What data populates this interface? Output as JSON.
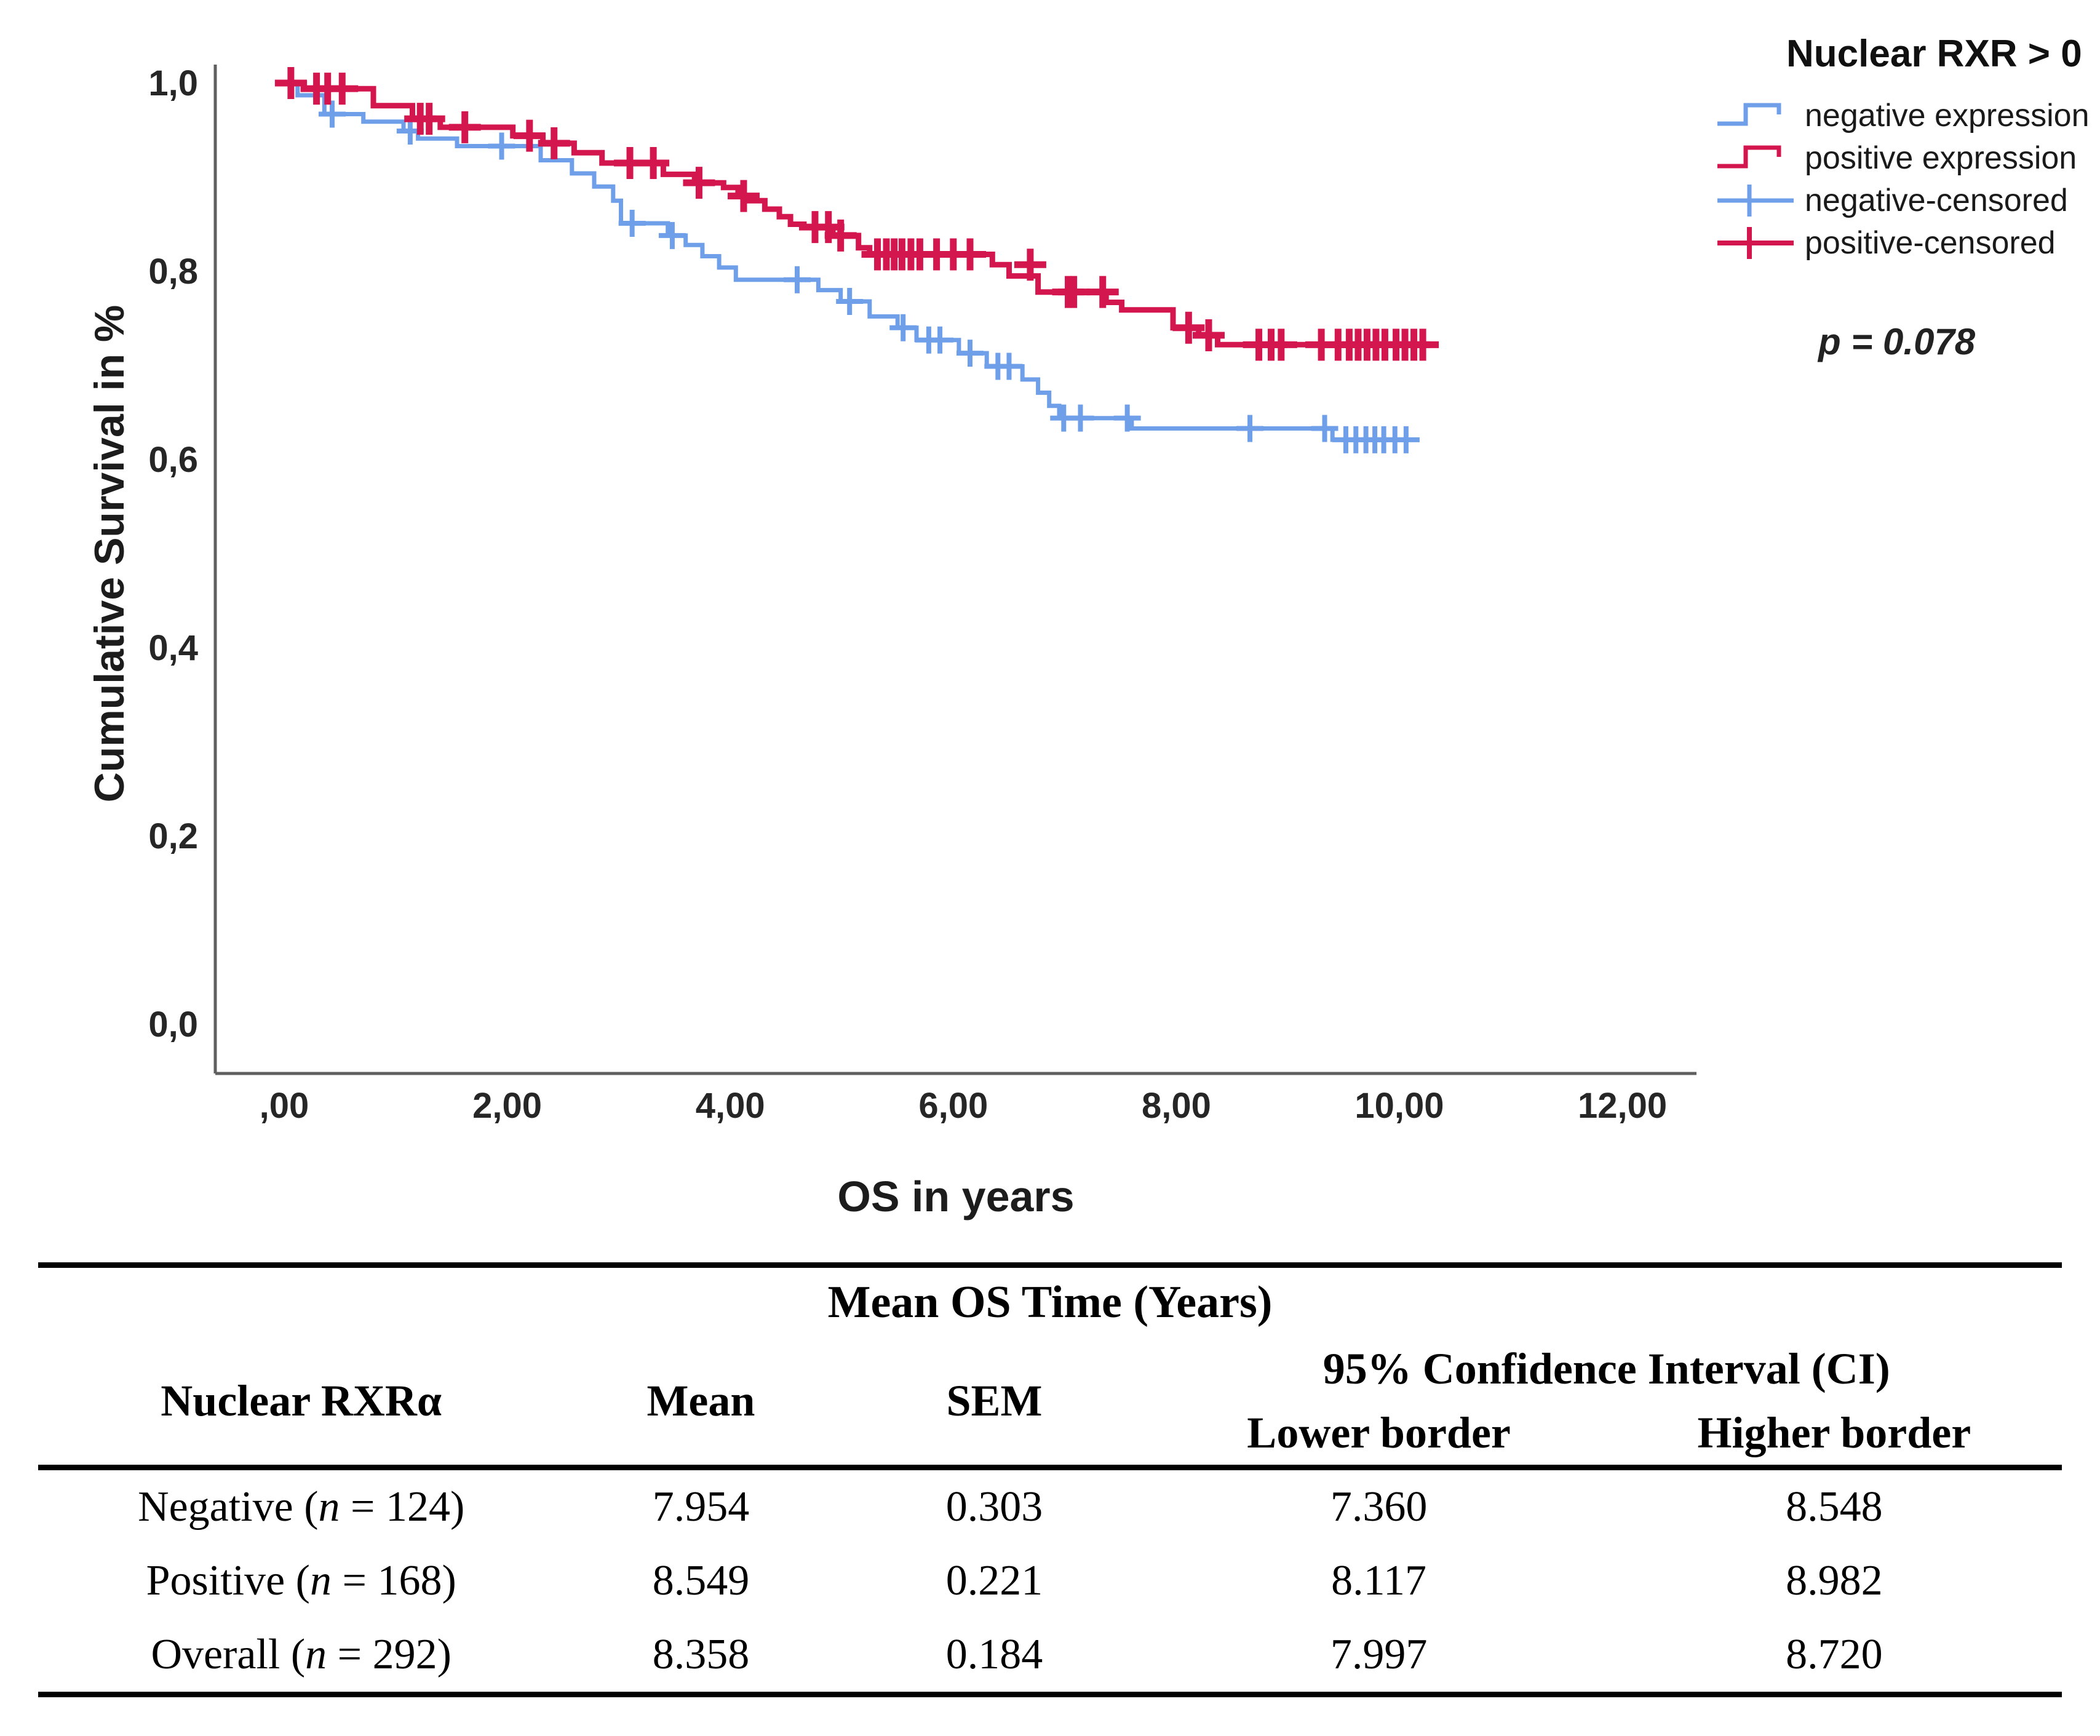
{
  "chart": {
    "legend": {
      "title": "Nuclear RXR > 0",
      "items": [
        {
          "label": "negative expression",
          "swatch": "step-line-icon",
          "series": "negative"
        },
        {
          "label": "positive expression",
          "swatch": "step-line-icon",
          "series": "positive"
        },
        {
          "label": "negative-censored",
          "swatch": "plus-mark-icon",
          "series": "negative"
        },
        {
          "label": "positive-censored",
          "swatch": "plus-mark-icon",
          "series": "positive"
        }
      ],
      "p_value": "p = 0.078"
    }
  },
  "chart_data": {
    "type": "line",
    "subtype": "kaplan-meier-step",
    "title": "",
    "xlabel": "OS in years",
    "ylabel": "Cumulative Survival in %",
    "xlim": [
      -0.6,
      12.7
    ],
    "ylim": [
      -0.05,
      1.05
    ],
    "grid": false,
    "legend_position": "right",
    "p_value": 0.078,
    "xticks": [
      {
        "label": ",00",
        "t": 0
      },
      {
        "label": "2,00",
        "t": 2
      },
      {
        "label": "4,00",
        "t": 4
      },
      {
        "label": "6,00",
        "t": 6
      },
      {
        "label": "8,00",
        "t": 8
      },
      {
        "label": "10,00",
        "t": 10
      },
      {
        "label": "12,00",
        "t": 12
      }
    ],
    "yticks": [
      {
        "label": "1,0",
        "v": 1.0
      },
      {
        "label": "0,8",
        "v": 0.8
      },
      {
        "label": "0,6",
        "v": 0.6
      },
      {
        "label": "0,4",
        "v": 0.4
      },
      {
        "label": "0,2",
        "v": 0.2
      },
      {
        "label": "0,0",
        "v": 0.0
      }
    ],
    "series": [
      {
        "key": "negative",
        "name": "negative expression",
        "color": "#6f9fe8",
        "end_t": 10.12,
        "steps": [
          [
            0.0,
            1.0
          ],
          [
            0.12,
            0.987
          ],
          [
            0.36,
            0.967
          ],
          [
            0.71,
            0.959
          ],
          [
            1.07,
            0.949
          ],
          [
            1.2,
            0.941
          ],
          [
            1.55,
            0.933
          ],
          [
            2.3,
            0.918
          ],
          [
            2.58,
            0.904
          ],
          [
            2.78,
            0.89
          ],
          [
            2.95,
            0.875
          ],
          [
            3.02,
            0.851
          ],
          [
            3.44,
            0.838
          ],
          [
            3.6,
            0.828
          ],
          [
            3.75,
            0.816
          ],
          [
            3.9,
            0.804
          ],
          [
            4.05,
            0.791
          ],
          [
            4.79,
            0.78
          ],
          [
            4.99,
            0.768
          ],
          [
            5.25,
            0.752
          ],
          [
            5.5,
            0.74
          ],
          [
            5.67,
            0.727
          ],
          [
            6.05,
            0.713
          ],
          [
            6.3,
            0.699
          ],
          [
            6.62,
            0.685
          ],
          [
            6.76,
            0.671
          ],
          [
            6.86,
            0.657
          ],
          [
            6.95,
            0.644
          ],
          [
            7.6,
            0.633
          ],
          [
            9.4,
            0.621
          ]
        ],
        "censored": [
          [
            0.43,
            0.967
          ],
          [
            1.13,
            0.949
          ],
          [
            1.95,
            0.933
          ],
          [
            3.12,
            0.851
          ],
          [
            3.48,
            0.838
          ],
          [
            4.6,
            0.791
          ],
          [
            5.07,
            0.768
          ],
          [
            5.55,
            0.74
          ],
          [
            5.78,
            0.727
          ],
          [
            5.88,
            0.727
          ],
          [
            6.15,
            0.713
          ],
          [
            6.4,
            0.699
          ],
          [
            6.5,
            0.699
          ],
          [
            6.99,
            0.644
          ],
          [
            7.14,
            0.644
          ],
          [
            7.56,
            0.644
          ],
          [
            8.66,
            0.633
          ],
          [
            9.33,
            0.633
          ],
          [
            9.52,
            0.621
          ],
          [
            9.61,
            0.621
          ],
          [
            9.7,
            0.621
          ],
          [
            9.78,
            0.621
          ],
          [
            9.86,
            0.621
          ],
          [
            9.96,
            0.621
          ],
          [
            10.06,
            0.621
          ]
        ]
      },
      {
        "key": "positive",
        "name": "positive expression",
        "color": "#d4164e",
        "end_t": 10.35,
        "steps": [
          [
            0.0,
            1.0
          ],
          [
            0.18,
            0.994
          ],
          [
            0.8,
            0.976
          ],
          [
            1.15,
            0.962
          ],
          [
            1.4,
            0.953
          ],
          [
            2.05,
            0.944
          ],
          [
            2.32,
            0.936
          ],
          [
            2.6,
            0.926
          ],
          [
            2.85,
            0.915
          ],
          [
            3.4,
            0.903
          ],
          [
            3.68,
            0.894
          ],
          [
            3.94,
            0.889
          ],
          [
            4.07,
            0.88
          ],
          [
            4.17,
            0.875
          ],
          [
            4.31,
            0.866
          ],
          [
            4.44,
            0.858
          ],
          [
            4.54,
            0.85
          ],
          [
            4.66,
            0.847
          ],
          [
            4.92,
            0.838
          ],
          [
            5.15,
            0.825
          ],
          [
            5.25,
            0.818
          ],
          [
            6.35,
            0.807
          ],
          [
            6.5,
            0.795
          ],
          [
            6.76,
            0.778
          ],
          [
            7.37,
            0.767
          ],
          [
            7.51,
            0.759
          ],
          [
            7.97,
            0.74
          ],
          [
            8.2,
            0.732
          ],
          [
            8.37,
            0.722
          ]
        ],
        "censored": [
          [
            0.06,
            1.0
          ],
          [
            0.29,
            0.994
          ],
          [
            0.39,
            0.994
          ],
          [
            0.52,
            0.994
          ],
          [
            1.22,
            0.962
          ],
          [
            1.3,
            0.962
          ],
          [
            1.62,
            0.953
          ],
          [
            2.2,
            0.944
          ],
          [
            2.42,
            0.936
          ],
          [
            3.1,
            0.915
          ],
          [
            3.31,
            0.915
          ],
          [
            3.72,
            0.894
          ],
          [
            4.12,
            0.88
          ],
          [
            4.76,
            0.847
          ],
          [
            4.88,
            0.847
          ],
          [
            4.99,
            0.838
          ],
          [
            5.32,
            0.818
          ],
          [
            5.4,
            0.818
          ],
          [
            5.47,
            0.818
          ],
          [
            5.54,
            0.818
          ],
          [
            5.62,
            0.818
          ],
          [
            5.7,
            0.818
          ],
          [
            5.85,
            0.818
          ],
          [
            6.0,
            0.818
          ],
          [
            6.15,
            0.818
          ],
          [
            6.69,
            0.807
          ],
          [
            7.03,
            0.778
          ],
          [
            7.08,
            0.778
          ],
          [
            7.34,
            0.778
          ],
          [
            8.11,
            0.74
          ],
          [
            8.29,
            0.732
          ],
          [
            8.74,
            0.722
          ],
          [
            8.85,
            0.722
          ],
          [
            8.94,
            0.722
          ],
          [
            9.3,
            0.722
          ],
          [
            9.45,
            0.722
          ],
          [
            9.55,
            0.722
          ],
          [
            9.63,
            0.722
          ],
          [
            9.71,
            0.722
          ],
          [
            9.79,
            0.722
          ],
          [
            9.87,
            0.722
          ],
          [
            9.97,
            0.722
          ],
          [
            10.05,
            0.722
          ],
          [
            10.13,
            0.722
          ],
          [
            10.21,
            0.722
          ]
        ]
      }
    ]
  },
  "table": {
    "title": "Mean OS Time (Years)",
    "group_header": "95% Confidence Interval (CI)",
    "col_headers": {
      "group": "Nuclear RXRα",
      "mean": "Mean",
      "sem": "SEM",
      "lower": "Lower border",
      "higher": "Higher border"
    },
    "rows": [
      {
        "label_pre": "Negative (",
        "label_n": "n",
        "label_post": " = 124)",
        "mean": "7.954",
        "sem": "0.303",
        "lower": "7.360",
        "higher": "8.548"
      },
      {
        "label_pre": "Positive (",
        "label_n": "n",
        "label_post": " = 168)",
        "mean": "8.549",
        "sem": "0.221",
        "lower": "8.117",
        "higher": "8.982"
      },
      {
        "label_pre": "Overall (",
        "label_n": "n",
        "label_post": " = 292)",
        "mean": "8.358",
        "sem": "0.184",
        "lower": "7.997",
        "higher": "8.720"
      }
    ]
  }
}
